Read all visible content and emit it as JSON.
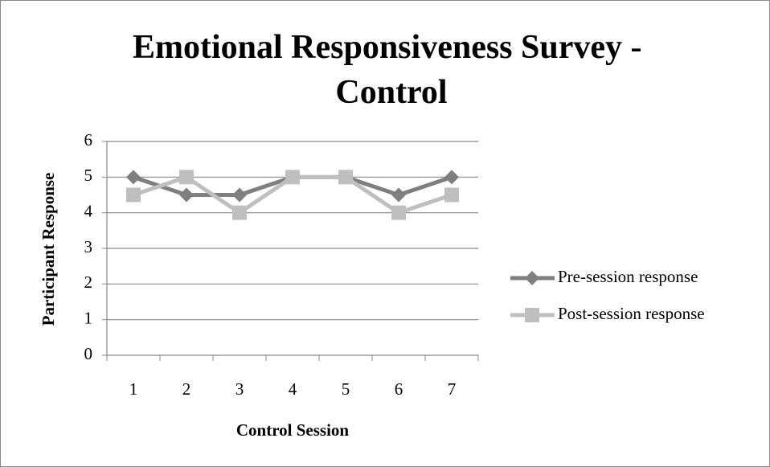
{
  "chart_data": {
    "type": "line",
    "title": "Emotional Responsiveness Survey - Control",
    "x_label": "Control Session",
    "y_label": "Participant Response",
    "categories": [
      "1",
      "2",
      "3",
      "4",
      "5",
      "6",
      "7"
    ],
    "series": [
      {
        "name": "Pre-session response",
        "color": "#7f7f7f",
        "marker": "diamond",
        "values": [
          5,
          4.5,
          4.5,
          5,
          5,
          4.5,
          5
        ]
      },
      {
        "name": "Post-session response",
        "color": "#bfbfbf",
        "marker": "square",
        "values": [
          4.5,
          5,
          4,
          5,
          5,
          4,
          4.5
        ]
      }
    ],
    "ylim": [
      0,
      6
    ],
    "yticks": [
      0,
      1,
      2,
      3,
      4,
      5,
      6
    ],
    "grid": true,
    "legend": "right"
  }
}
